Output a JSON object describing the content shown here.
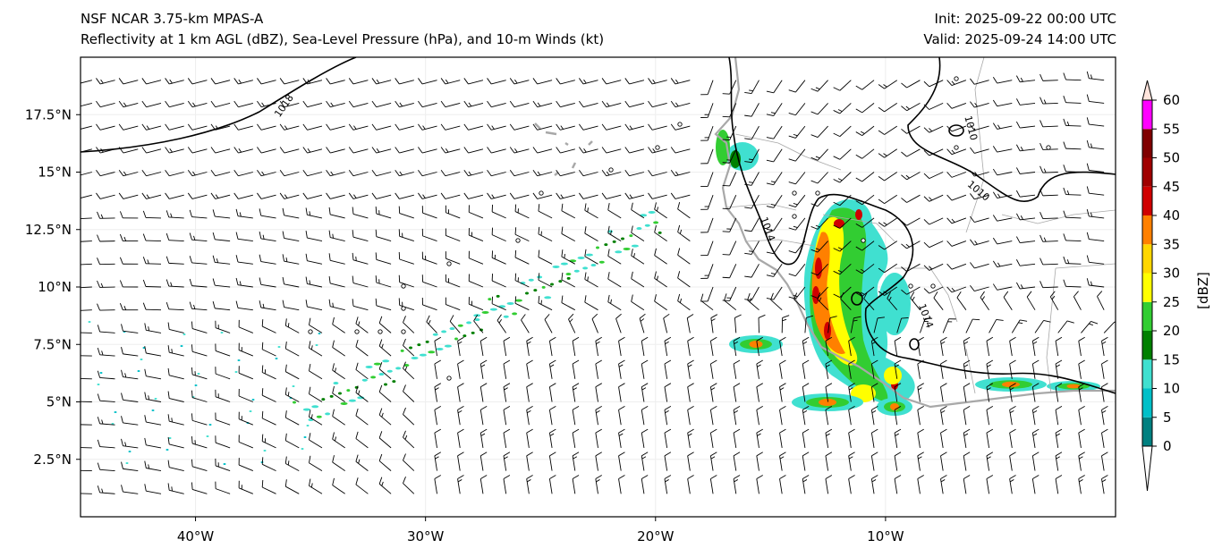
{
  "title": {
    "model": "NSF NCAR 3.75-km MPAS-A",
    "fields": "Reflectivity at 1 km AGL (dBZ), Sea-Level Pressure (hPa), and 10-m Winds (kt)",
    "init": "Init: 2025-09-22 00:00 UTC",
    "valid": "Valid: 2025-09-24 14:00 UTC"
  },
  "map": {
    "lon_range": [
      -45,
      0
    ],
    "lat_range": [
      0,
      20
    ],
    "x_ticks": [
      {
        "lon": -40,
        "label": "40°W"
      },
      {
        "lon": -30,
        "label": "30°W"
      },
      {
        "lon": -20,
        "label": "20°W"
      },
      {
        "lon": -10,
        "label": "10°W"
      }
    ],
    "y_ticks": [
      {
        "lat": 17.5,
        "label": "17.5°N"
      },
      {
        "lat": 15,
        "label": "15°N"
      },
      {
        "lat": 12.5,
        "label": "12.5°N"
      },
      {
        "lat": 10,
        "label": "10°N"
      },
      {
        "lat": 7.5,
        "label": "7.5°N"
      },
      {
        "lat": 5,
        "label": "5°N"
      },
      {
        "lat": 2.5,
        "label": "2.5°N"
      }
    ],
    "contour_labels": [
      "1018",
      "1014",
      "1014",
      "1010",
      "1010"
    ]
  },
  "colorbar": {
    "label": "[dBZ]",
    "levels": [
      "0",
      "5",
      "10",
      "15",
      "20",
      "25",
      "30",
      "35",
      "40",
      "45",
      "50",
      "55",
      "60"
    ],
    "colors": [
      "#008080",
      "#00c0c8",
      "#40e0d0",
      "#008000",
      "#32cd32",
      "#ffff00",
      "#ffd700",
      "#ff8000",
      "#d00000",
      "#a00000",
      "#800000",
      "#ff00ff",
      "#ffe4dc"
    ]
  }
}
